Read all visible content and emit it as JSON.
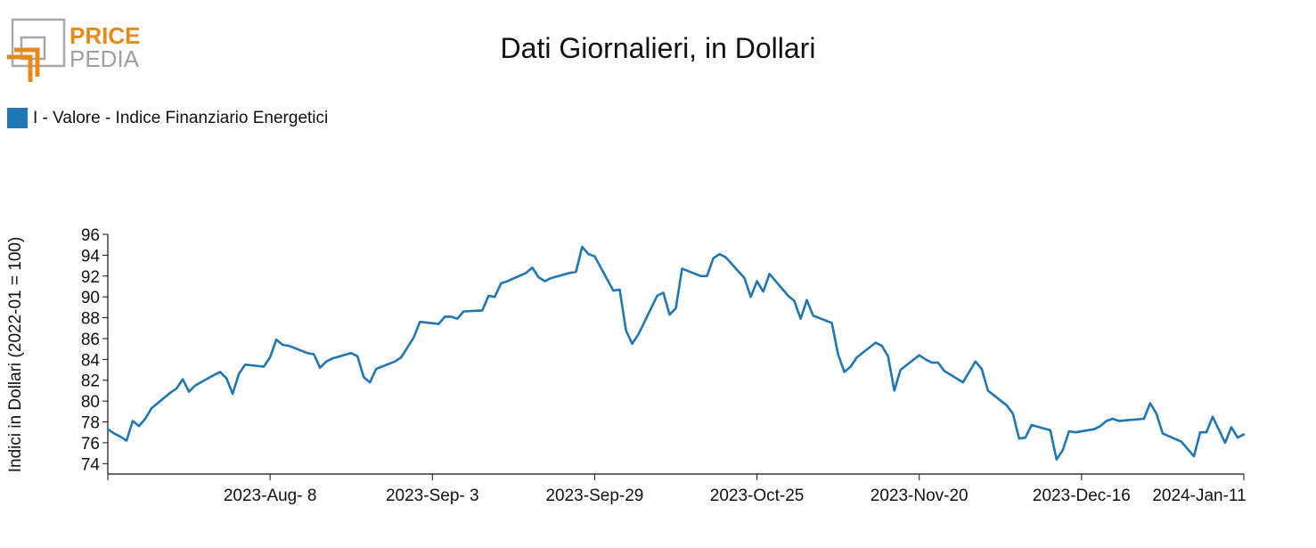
{
  "logo": {
    "line1": "PRICE",
    "line2": "PEDIA",
    "accent_color": "#e8891c",
    "gray_color": "#a0a0a0"
  },
  "chart_data": {
    "type": "line",
    "title": "Dati Giornalieri, in Dollari",
    "ylabel": "Indici in Dollari (2022-01 = 100)",
    "xlabel": "",
    "ylim": [
      73,
      96
    ],
    "yticks": [
      74,
      76,
      78,
      80,
      82,
      84,
      86,
      88,
      90,
      92,
      94,
      96
    ],
    "x_range": [
      "2023-07-13",
      "2024-01-11"
    ],
    "xticks": [
      {
        "date": "2023-08-08",
        "label": "2023-Aug- 8"
      },
      {
        "date": "2023-09-03",
        "label": "2023-Sep- 3"
      },
      {
        "date": "2023-09-29",
        "label": "2023-Sep-29"
      },
      {
        "date": "2023-10-25",
        "label": "2023-Oct-25"
      },
      {
        "date": "2023-11-20",
        "label": "2023-Nov-20"
      },
      {
        "date": "2023-12-16",
        "label": "2023-Dec-16"
      },
      {
        "date": "2024-01-11",
        "label": "2024-Jan-11"
      }
    ],
    "legend_position": "top-left",
    "grid": false,
    "series": [
      {
        "name": "I - Valore - Indice Finanziario Energetici",
        "color": "#1f77b4",
        "points": [
          [
            "2023-07-13",
            77.3
          ],
          [
            "2023-07-14",
            76.9
          ],
          [
            "2023-07-15",
            76.6
          ],
          [
            "2023-07-16",
            76.2
          ],
          [
            "2023-07-17",
            78.1
          ],
          [
            "2023-07-18",
            77.6
          ],
          [
            "2023-07-19",
            78.3
          ],
          [
            "2023-07-20",
            79.3
          ],
          [
            "2023-07-23",
            80.8
          ],
          [
            "2023-07-24",
            81.2
          ],
          [
            "2023-07-25",
            82.1
          ],
          [
            "2023-07-26",
            80.9
          ],
          [
            "2023-07-27",
            81.5
          ],
          [
            "2023-07-30",
            82.5
          ],
          [
            "2023-07-31",
            82.8
          ],
          [
            "2023-08-01",
            82.2
          ],
          [
            "2023-08-02",
            80.7
          ],
          [
            "2023-08-03",
            82.6
          ],
          [
            "2023-08-04",
            83.5
          ],
          [
            "2023-08-07",
            83.3
          ],
          [
            "2023-08-08",
            84.2
          ],
          [
            "2023-08-09",
            85.9
          ],
          [
            "2023-08-10",
            85.4
          ],
          [
            "2023-08-11",
            85.3
          ],
          [
            "2023-08-14",
            84.6
          ],
          [
            "2023-08-15",
            84.5
          ],
          [
            "2023-08-16",
            83.2
          ],
          [
            "2023-08-17",
            83.8
          ],
          [
            "2023-08-18",
            84.1
          ],
          [
            "2023-08-21",
            84.6
          ],
          [
            "2023-08-22",
            84.3
          ],
          [
            "2023-08-23",
            82.3
          ],
          [
            "2023-08-24",
            81.8
          ],
          [
            "2023-08-25",
            83.1
          ],
          [
            "2023-08-28",
            83.8
          ],
          [
            "2023-08-29",
            84.2
          ],
          [
            "2023-08-31",
            86.1
          ],
          [
            "2023-09-01",
            87.6
          ],
          [
            "2023-09-04",
            87.4
          ],
          [
            "2023-09-05",
            88.1
          ],
          [
            "2023-09-06",
            88.1
          ],
          [
            "2023-09-07",
            87.9
          ],
          [
            "2023-09-08",
            88.6
          ],
          [
            "2023-09-11",
            88.7
          ],
          [
            "2023-09-12",
            90.1
          ],
          [
            "2023-09-13",
            90.0
          ],
          [
            "2023-09-14",
            91.3
          ],
          [
            "2023-09-15",
            91.5
          ],
          [
            "2023-09-18",
            92.3
          ],
          [
            "2023-09-19",
            92.8
          ],
          [
            "2023-09-20",
            91.9
          ],
          [
            "2023-09-21",
            91.5
          ],
          [
            "2023-09-22",
            91.8
          ],
          [
            "2023-09-25",
            92.3
          ],
          [
            "2023-09-26",
            92.4
          ],
          [
            "2023-09-27",
            94.8
          ],
          [
            "2023-09-28",
            94.1
          ],
          [
            "2023-09-29",
            93.9
          ],
          [
            "2023-10-02",
            90.6
          ],
          [
            "2023-10-03",
            90.7
          ],
          [
            "2023-10-04",
            86.8
          ],
          [
            "2023-10-05",
            85.5
          ],
          [
            "2023-10-06",
            86.4
          ],
          [
            "2023-10-09",
            90.1
          ],
          [
            "2023-10-10",
            90.4
          ],
          [
            "2023-10-11",
            88.3
          ],
          [
            "2023-10-12",
            88.9
          ],
          [
            "2023-10-13",
            92.7
          ],
          [
            "2023-10-16",
            92.0
          ],
          [
            "2023-10-17",
            92.0
          ],
          [
            "2023-10-18",
            93.7
          ],
          [
            "2023-10-19",
            94.1
          ],
          [
            "2023-10-20",
            93.8
          ],
          [
            "2023-10-23",
            91.8
          ],
          [
            "2023-10-24",
            90.0
          ],
          [
            "2023-10-25",
            91.5
          ],
          [
            "2023-10-26",
            90.5
          ],
          [
            "2023-10-27",
            92.2
          ],
          [
            "2023-10-30",
            90.1
          ],
          [
            "2023-10-31",
            89.6
          ],
          [
            "2023-11-01",
            87.9
          ],
          [
            "2023-11-02",
            89.7
          ],
          [
            "2023-11-03",
            88.2
          ],
          [
            "2023-11-06",
            87.5
          ],
          [
            "2023-11-07",
            84.5
          ],
          [
            "2023-11-08",
            82.8
          ],
          [
            "2023-11-09",
            83.3
          ],
          [
            "2023-11-10",
            84.2
          ],
          [
            "2023-11-13",
            85.6
          ],
          [
            "2023-11-14",
            85.3
          ],
          [
            "2023-11-15",
            84.3
          ],
          [
            "2023-11-16",
            81.0
          ],
          [
            "2023-11-17",
            83.0
          ],
          [
            "2023-11-20",
            84.4
          ],
          [
            "2023-11-21",
            84.0
          ],
          [
            "2023-11-22",
            83.7
          ],
          [
            "2023-11-23",
            83.7
          ],
          [
            "2023-11-24",
            82.9
          ],
          [
            "2023-11-27",
            81.8
          ],
          [
            "2023-11-29",
            83.8
          ],
          [
            "2023-11-30",
            83.1
          ],
          [
            "2023-12-01",
            81.0
          ],
          [
            "2023-12-04",
            79.6
          ],
          [
            "2023-12-05",
            78.8
          ],
          [
            "2023-12-06",
            76.4
          ],
          [
            "2023-12-07",
            76.5
          ],
          [
            "2023-12-08",
            77.7
          ],
          [
            "2023-12-11",
            77.2
          ],
          [
            "2023-12-12",
            74.4
          ],
          [
            "2023-12-13",
            75.3
          ],
          [
            "2023-12-14",
            77.1
          ],
          [
            "2023-12-15",
            77.0
          ],
          [
            "2023-12-18",
            77.3
          ],
          [
            "2023-12-19",
            77.6
          ],
          [
            "2023-12-20",
            78.1
          ],
          [
            "2023-12-21",
            78.3
          ],
          [
            "2023-12-22",
            78.1
          ],
          [
            "2023-12-26",
            78.3
          ],
          [
            "2023-12-27",
            79.8
          ],
          [
            "2023-12-28",
            78.8
          ],
          [
            "2023-12-29",
            76.9
          ],
          [
            "2024-01-01",
            76.1
          ],
          [
            "2024-01-03",
            74.7
          ],
          [
            "2024-01-04",
            77.0
          ],
          [
            "2024-01-05",
            77.0
          ],
          [
            "2024-01-06",
            78.5
          ],
          [
            "2024-01-08",
            76.0
          ],
          [
            "2024-01-09",
            77.5
          ],
          [
            "2024-01-10",
            76.5
          ],
          [
            "2024-01-11",
            76.8
          ]
        ]
      }
    ]
  }
}
